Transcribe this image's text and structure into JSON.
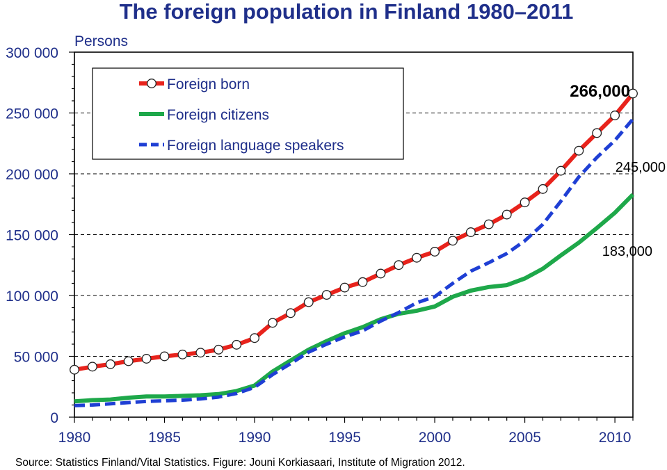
{
  "chart_data": {
    "type": "line",
    "title": "The foreign population in Finland 1980–2011",
    "ylabel": "Persons",
    "xlabel": "",
    "xlim": [
      1980,
      2011
    ],
    "ylim": [
      0,
      300000
    ],
    "y_ticks": [
      {
        "value": 0,
        "label": "0"
      },
      {
        "value": 50000,
        "label": "50 000"
      },
      {
        "value": 100000,
        "label": "100 000"
      },
      {
        "value": 150000,
        "label": "150 000"
      },
      {
        "value": 200000,
        "label": "200 000"
      },
      {
        "value": 250000,
        "label": "250 000"
      },
      {
        "value": 300000,
        "label": "300 000"
      }
    ],
    "x_ticks": [
      {
        "value": 1980,
        "label": "1980"
      },
      {
        "value": 1985,
        "label": "1985"
      },
      {
        "value": 1990,
        "label": "1990"
      },
      {
        "value": 1995,
        "label": "1995"
      },
      {
        "value": 2000,
        "label": "2000"
      },
      {
        "value": 2005,
        "label": "2005"
      },
      {
        "value": 2010,
        "label": "2010"
      }
    ],
    "grid": "horizontal dashed",
    "legend": "top-left",
    "x": [
      1980,
      1981,
      1982,
      1983,
      1984,
      1985,
      1986,
      1987,
      1988,
      1989,
      1990,
      1991,
      1992,
      1993,
      1994,
      1995,
      1996,
      1997,
      1998,
      1999,
      2000,
      2001,
      2002,
      2003,
      2004,
      2005,
      2006,
      2007,
      2008,
      2009,
      2010,
      2011
    ],
    "series": [
      {
        "name": "Foreign born",
        "color": "#e8231c",
        "style": "solid-with-markers",
        "values": [
          39000,
          41500,
          43500,
          46000,
          48000,
          50000,
          51500,
          53000,
          55500,
          59500,
          65000,
          77500,
          85500,
          94500,
          100500,
          106500,
          111000,
          118000,
          125000,
          131000,
          136000,
          145000,
          152000,
          158500,
          166500,
          176500,
          187500,
          202500,
          219000,
          233500,
          248000,
          266000
        ]
      },
      {
        "name": "Foreign citizens",
        "color": "#1ea84a",
        "style": "solid",
        "values": [
          13000,
          14000,
          14500,
          16000,
          17000,
          17000,
          17500,
          18000,
          19000,
          21500,
          26000,
          37500,
          46500,
          55500,
          62500,
          69000,
          74000,
          80500,
          85000,
          87500,
          91000,
          99000,
          104000,
          107000,
          108500,
          114000,
          122000,
          133000,
          143500,
          155500,
          168000,
          183000
        ]
      },
      {
        "name": "Foreign language speakers",
        "color": "#1f3fd4",
        "style": "dashed",
        "values": [
          9500,
          10000,
          11000,
          12000,
          13000,
          13500,
          14000,
          15000,
          16500,
          19500,
          24500,
          35000,
          44000,
          53500,
          60000,
          66000,
          71000,
          79000,
          86000,
          94000,
          99000,
          110000,
          120000,
          127000,
          134500,
          145000,
          158500,
          177500,
          197500,
          213500,
          227500,
          245000
        ]
      }
    ],
    "annotations": [
      {
        "text": "266,000",
        "series": "Foreign born"
      },
      {
        "text": "245,000",
        "series": "Foreign language speakers"
      },
      {
        "text": "183,000",
        "series": "Foreign citizens"
      }
    ],
    "source": "Source: Statistics Finland/Vital Statistics. Figure: Jouni  Korkiasaari, Institute of Migration 2012."
  }
}
